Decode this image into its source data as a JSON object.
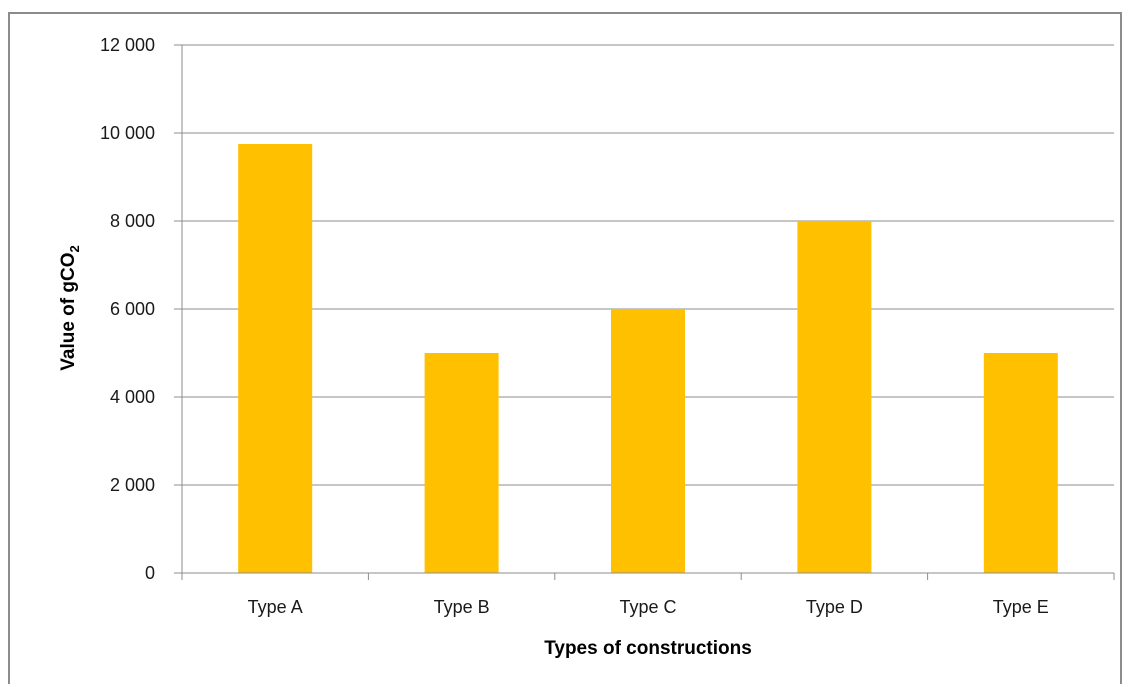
{
  "colors": {
    "bar": "#FFC000",
    "grid": "#8c8c8c",
    "axis": "#8c8c8c",
    "frame": "#8c8c8c"
  },
  "chart_data": {
    "type": "bar",
    "categories": [
      "Type A",
      "Type B",
      "Type C",
      "Type D",
      "Type E"
    ],
    "values": [
      9750,
      5000,
      6000,
      8000,
      5000
    ],
    "ylim": [
      0,
      12000
    ],
    "yticks": [
      0,
      2000,
      4000,
      6000,
      8000,
      10000,
      12000
    ],
    "ytick_labels": [
      "0",
      "2 000",
      "4 000",
      "6 000",
      "8 000",
      "10 000",
      "12 000"
    ],
    "xlabel": "Types of constructions",
    "ylabel": {
      "main": "Value of gCO",
      "subscript": "2"
    },
    "grid": "horizontal",
    "legend": "none"
  }
}
